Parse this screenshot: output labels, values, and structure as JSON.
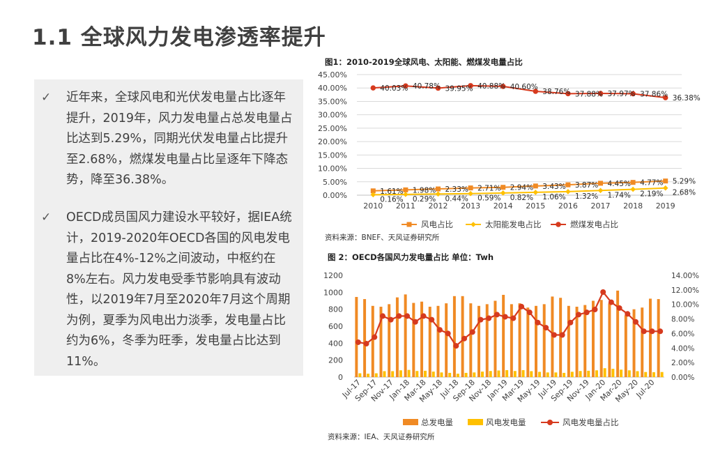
{
  "page": {
    "title": "1.1 全球风力发电渗透率提升"
  },
  "bullets": [
    {
      "icon": "checkmark-icon",
      "mark": "✓",
      "text": "近年来，全球风电和光伏发电量占比逐年提升，2019年，风力发电量占总发电量占比达到5.29%，同期光伏发电量占比提升至2.68%，燃煤发电量占比呈逐年下降态势，降至36.38%。"
    },
    {
      "icon": "checkmark-icon",
      "mark": "✓",
      "text": "OECD成员国风力建设水平较好，据IEA统计，2019-2020年OECD各国的风电发电量占比在4%-12%之间波动，中枢约在8%左右。风力发电受季节影响具有波动性，以2019年7月至2020年7月这个周期为例，夏季为风电出力淡季，发电量占比约为6%，冬季为旺季，发电量占比达到11%。"
    }
  ],
  "chart_data": [
    {
      "type": "line",
      "title": "图1：2010-2019全球风电、太阳能、燃煤发电量占比",
      "source": "资料来源：BNEF、天风证券研究所",
      "categories": [
        "2010",
        "2011",
        "2012",
        "2013",
        "2014",
        "2015",
        "2016",
        "2017",
        "2018",
        "2019"
      ],
      "yticks": [
        "0.00%",
        "5.00%",
        "10.00%",
        "15.00%",
        "20.00%",
        "25.00%",
        "30.00%",
        "35.00%",
        "40.00%",
        "45.00%"
      ],
      "ylim": [
        0,
        45
      ],
      "grid": true,
      "legend_position": "bottom",
      "series": [
        {
          "name": "风电占比",
          "color": "#f08a24",
          "marker": "square",
          "values": [
            1.61,
            1.98,
            2.33,
            2.71,
            2.94,
            3.43,
            3.87,
            4.45,
            4.77,
            5.29
          ],
          "labels": [
            "1.61%",
            "1.98%",
            "2.33%",
            "2.71%",
            "2.94%",
            "3.43%",
            "3.87%",
            "4.45%",
            "4.77%",
            "5.29%"
          ]
        },
        {
          "name": "太阳能发电占比",
          "color": "#ffc000",
          "marker": "diamond",
          "values": [
            0.16,
            0.29,
            0.44,
            0.59,
            0.82,
            1.06,
            1.32,
            1.74,
            2.19,
            2.68
          ],
          "labels": [
            "0.16%",
            "0.29%",
            "0.44%",
            "0.59%",
            "0.82%",
            "1.06%",
            "1.32%",
            "1.74%",
            "2.19%",
            "2.68%"
          ]
        },
        {
          "name": "燃煤发电占比",
          "color": "#d63a1e",
          "marker": "circle",
          "values": [
            40.03,
            40.78,
            39.95,
            40.88,
            40.6,
            38.76,
            37.88,
            37.97,
            37.86,
            36.38
          ],
          "labels": [
            "40.03%",
            "40.78%",
            "39.95%",
            "40.88%",
            "40.60%",
            "38.76%",
            "37.88%",
            "37.97%",
            "37.86%",
            "36.38%"
          ]
        }
      ]
    },
    {
      "type": "bar",
      "title": "图 2：OECD各国风力发电量占比  单位：Twh",
      "source": "资料来源：IEA、天风证券研究所",
      "categories": [
        "Jul-17",
        "Aug-17",
        "Sep-17",
        "Oct-17",
        "Nov-17",
        "Dec-17",
        "Jan-18",
        "Feb-18",
        "Mar-18",
        "Apr-18",
        "May-18",
        "Jun-18",
        "Jul-18",
        "Aug-18",
        "Sep-18",
        "Oct-18",
        "Nov-18",
        "Dec-18",
        "Jan-19",
        "Feb-19",
        "Mar-19",
        "Apr-19",
        "May-19",
        "Jun-19",
        "Jul-19",
        "Aug-19",
        "Sep-19",
        "Oct-19",
        "Nov-19",
        "Dec-19",
        "Jan-20",
        "Feb-20",
        "Mar-20",
        "Apr-20",
        "May-20",
        "Jun-20",
        "Jul-20",
        "Aug-20"
      ],
      "tick_labels": [
        "Jul-17",
        "Sep-17",
        "Nov-17",
        "Jan-18",
        "Mar-18",
        "May-18",
        "Jul-18",
        "Sep-18",
        "Nov-18",
        "Jan-19",
        "Mar-19",
        "May-19",
        "Jul-19",
        "Sep-19",
        "Nov-19",
        "Jan-20",
        "Mar-20",
        "May-20",
        "Jul-20"
      ],
      "y_left_ticks": [
        "0",
        "200",
        "400",
        "600",
        "800",
        "1000",
        "1200"
      ],
      "ylim_left": [
        0,
        1200
      ],
      "y_right_ticks": [
        "0.00%",
        "2.00%",
        "4.00%",
        "6.00%",
        "8.00%",
        "10.00%",
        "12.00%",
        "14.00%"
      ],
      "ylim_right": [
        0,
        14
      ],
      "grid": false,
      "legend_position": "bottom",
      "series": [
        {
          "name": "总发电量",
          "color": "#f08a24",
          "axis": "left",
          "values": [
            945,
            920,
            840,
            830,
            860,
            940,
            975,
            875,
            890,
            830,
            840,
            870,
            955,
            955,
            870,
            840,
            860,
            900,
            970,
            860,
            870,
            820,
            840,
            860,
            950,
            935,
            840,
            830,
            850,
            900,
            910,
            870,
            1020,
            730,
            800,
            820,
            925,
            920
          ]
        },
        {
          "name": "风电发电量",
          "color": "#ffc000",
          "axis": "left",
          "values": [
            45,
            40,
            45,
            70,
            70,
            80,
            85,
            72,
            75,
            65,
            55,
            50,
            40,
            50,
            55,
            65,
            72,
            78,
            82,
            72,
            82,
            70,
            62,
            55,
            55,
            50,
            63,
            72,
            75,
            80,
            105,
            98,
            88,
            80,
            70,
            60,
            58,
            60
          ]
        },
        {
          "name": "风电发电量占比",
          "color": "#d63a1e",
          "axis": "right",
          "values": [
            4.8,
            4.6,
            5.5,
            8.4,
            7.9,
            8.4,
            8.4,
            7.6,
            8.4,
            7.9,
            6.5,
            6.0,
            4.3,
            5.3,
            6.2,
            7.9,
            8.1,
            8.6,
            8.3,
            8.1,
            9.7,
            8.9,
            7.5,
            6.8,
            5.8,
            5.8,
            7.5,
            8.6,
            8.9,
            9.3,
            11.7,
            10.3,
            9.5,
            8.7,
            7.6,
            6.3,
            6.3,
            6.3
          ]
        }
      ]
    }
  ]
}
